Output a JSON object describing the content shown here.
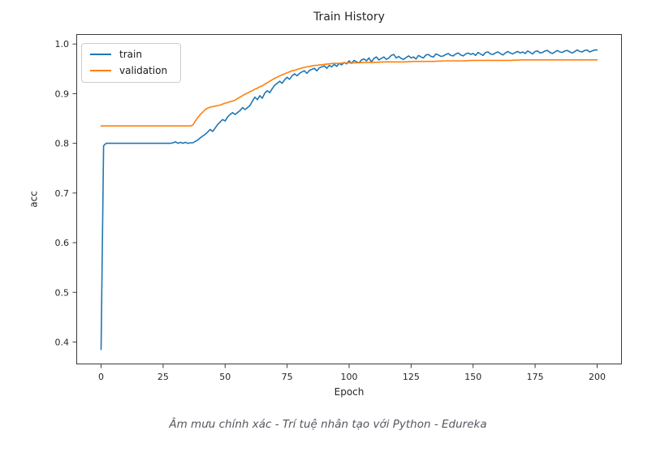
{
  "page": {
    "background": "#ffffff"
  },
  "caption": {
    "text": "Âm mưu chính xác - Trí tuệ nhân tạo với Python - Edureka"
  },
  "chart_data": {
    "type": "line",
    "title": "Train History",
    "xlabel": "Epoch",
    "ylabel": "acc",
    "xlim": [
      -10,
      210
    ],
    "ylim": [
      0.355,
      1.02
    ],
    "grid": false,
    "legend_position": "upper-left",
    "axis_color": "#3a3a3a",
    "x_ticks": [
      {
        "value": 0,
        "label": "0"
      },
      {
        "value": 25,
        "label": "25"
      },
      {
        "value": 50,
        "label": "50"
      },
      {
        "value": 75,
        "label": "75"
      },
      {
        "value": 100,
        "label": "100"
      },
      {
        "value": 125,
        "label": "125"
      },
      {
        "value": 150,
        "label": "150"
      },
      {
        "value": 175,
        "label": "175"
      },
      {
        "value": 200,
        "label": "200"
      }
    ],
    "y_ticks": [
      {
        "value": 0.4,
        "label": "0.4"
      },
      {
        "value": 0.5,
        "label": "0.5"
      },
      {
        "value": 0.6,
        "label": "0.6"
      },
      {
        "value": 0.7,
        "label": "0.7"
      },
      {
        "value": 0.8,
        "label": "0.8"
      },
      {
        "value": 0.9,
        "label": "0.9"
      },
      {
        "value": 1.0,
        "label": "1.0"
      }
    ],
    "series": [
      {
        "name": "train",
        "color": "#1f77b4",
        "points": [
          [
            0,
            0.385
          ],
          [
            1,
            0.795
          ],
          [
            2,
            0.8
          ],
          [
            4,
            0.8
          ],
          [
            6,
            0.8
          ],
          [
            8,
            0.8
          ],
          [
            10,
            0.8
          ],
          [
            12,
            0.8
          ],
          [
            14,
            0.8
          ],
          [
            16,
            0.8
          ],
          [
            18,
            0.8
          ],
          [
            20,
            0.8
          ],
          [
            22,
            0.8
          ],
          [
            24,
            0.8
          ],
          [
            26,
            0.8
          ],
          [
            28,
            0.8
          ],
          [
            29,
            0.801
          ],
          [
            30,
            0.803
          ],
          [
            31,
            0.8
          ],
          [
            32,
            0.802
          ],
          [
            33,
            0.8
          ],
          [
            34,
            0.802
          ],
          [
            35,
            0.8
          ],
          [
            36,
            0.801
          ],
          [
            37,
            0.801
          ],
          [
            38,
            0.804
          ],
          [
            39,
            0.807
          ],
          [
            40,
            0.811
          ],
          [
            41,
            0.815
          ],
          [
            42,
            0.818
          ],
          [
            43,
            0.823
          ],
          [
            44,
            0.828
          ],
          [
            45,
            0.824
          ],
          [
            46,
            0.831
          ],
          [
            47,
            0.838
          ],
          [
            48,
            0.843
          ],
          [
            49,
            0.848
          ],
          [
            50,
            0.845
          ],
          [
            51,
            0.853
          ],
          [
            52,
            0.858
          ],
          [
            53,
            0.862
          ],
          [
            54,
            0.858
          ],
          [
            55,
            0.862
          ],
          [
            56,
            0.866
          ],
          [
            57,
            0.872
          ],
          [
            58,
            0.868
          ],
          [
            59,
            0.872
          ],
          [
            60,
            0.876
          ],
          [
            61,
            0.885
          ],
          [
            62,
            0.893
          ],
          [
            63,
            0.888
          ],
          [
            64,
            0.896
          ],
          [
            65,
            0.891
          ],
          [
            66,
            0.901
          ],
          [
            67,
            0.906
          ],
          [
            68,
            0.902
          ],
          [
            69,
            0.91
          ],
          [
            70,
            0.917
          ],
          [
            71,
            0.921
          ],
          [
            72,
            0.925
          ],
          [
            73,
            0.921
          ],
          [
            74,
            0.928
          ],
          [
            75,
            0.933
          ],
          [
            76,
            0.929
          ],
          [
            77,
            0.936
          ],
          [
            78,
            0.94
          ],
          [
            79,
            0.936
          ],
          [
            80,
            0.941
          ],
          [
            81,
            0.944
          ],
          [
            82,
            0.946
          ],
          [
            83,
            0.941
          ],
          [
            84,
            0.947
          ],
          [
            85,
            0.949
          ],
          [
            86,
            0.951
          ],
          [
            87,
            0.946
          ],
          [
            88,
            0.952
          ],
          [
            89,
            0.954
          ],
          [
            90,
            0.956
          ],
          [
            91,
            0.951
          ],
          [
            92,
            0.957
          ],
          [
            93,
            0.954
          ],
          [
            94,
            0.959
          ],
          [
            95,
            0.955
          ],
          [
            96,
            0.961
          ],
          [
            97,
            0.958
          ],
          [
            98,
            0.963
          ],
          [
            99,
            0.96
          ],
          [
            100,
            0.966
          ],
          [
            101,
            0.961
          ],
          [
            102,
            0.967
          ],
          [
            103,
            0.964
          ],
          [
            104,
            0.962
          ],
          [
            105,
            0.968
          ],
          [
            106,
            0.97
          ],
          [
            107,
            0.966
          ],
          [
            108,
            0.972
          ],
          [
            109,
            0.964
          ],
          [
            110,
            0.971
          ],
          [
            111,
            0.974
          ],
          [
            112,
            0.968
          ],
          [
            113,
            0.971
          ],
          [
            114,
            0.974
          ],
          [
            115,
            0.969
          ],
          [
            116,
            0.972
          ],
          [
            117,
            0.977
          ],
          [
            118,
            0.979
          ],
          [
            119,
            0.972
          ],
          [
            120,
            0.975
          ],
          [
            121,
            0.971
          ],
          [
            122,
            0.969
          ],
          [
            123,
            0.973
          ],
          [
            124,
            0.976
          ],
          [
            125,
            0.972
          ],
          [
            126,
            0.974
          ],
          [
            127,
            0.97
          ],
          [
            128,
            0.977
          ],
          [
            129,
            0.974
          ],
          [
            130,
            0.972
          ],
          [
            131,
            0.978
          ],
          [
            132,
            0.979
          ],
          [
            133,
            0.975
          ],
          [
            134,
            0.974
          ],
          [
            135,
            0.98
          ],
          [
            136,
            0.978
          ],
          [
            137,
            0.975
          ],
          [
            138,
            0.976
          ],
          [
            139,
            0.979
          ],
          [
            140,
            0.981
          ],
          [
            141,
            0.977
          ],
          [
            142,
            0.976
          ],
          [
            143,
            0.98
          ],
          [
            144,
            0.982
          ],
          [
            145,
            0.978
          ],
          [
            146,
            0.976
          ],
          [
            147,
            0.98
          ],
          [
            148,
            0.982
          ],
          [
            149,
            0.979
          ],
          [
            150,
            0.981
          ],
          [
            151,
            0.977
          ],
          [
            152,
            0.983
          ],
          [
            153,
            0.98
          ],
          [
            154,
            0.977
          ],
          [
            155,
            0.983
          ],
          [
            156,
            0.984
          ],
          [
            157,
            0.98
          ],
          [
            158,
            0.979
          ],
          [
            159,
            0.982
          ],
          [
            160,
            0.984
          ],
          [
            161,
            0.981
          ],
          [
            162,
            0.978
          ],
          [
            163,
            0.982
          ],
          [
            164,
            0.985
          ],
          [
            165,
            0.982
          ],
          [
            166,
            0.98
          ],
          [
            167,
            0.983
          ],
          [
            168,
            0.985
          ],
          [
            169,
            0.982
          ],
          [
            170,
            0.984
          ],
          [
            171,
            0.981
          ],
          [
            172,
            0.986
          ],
          [
            173,
            0.983
          ],
          [
            174,
            0.98
          ],
          [
            175,
            0.985
          ],
          [
            176,
            0.986
          ],
          [
            177,
            0.982
          ],
          [
            178,
            0.983
          ],
          [
            179,
            0.986
          ],
          [
            180,
            0.987
          ],
          [
            181,
            0.983
          ],
          [
            182,
            0.981
          ],
          [
            183,
            0.984
          ],
          [
            184,
            0.987
          ],
          [
            185,
            0.984
          ],
          [
            186,
            0.983
          ],
          [
            187,
            0.986
          ],
          [
            188,
            0.987
          ],
          [
            189,
            0.984
          ],
          [
            190,
            0.982
          ],
          [
            191,
            0.985
          ],
          [
            192,
            0.988
          ],
          [
            193,
            0.985
          ],
          [
            194,
            0.984
          ],
          [
            195,
            0.987
          ],
          [
            196,
            0.988
          ],
          [
            197,
            0.984
          ],
          [
            198,
            0.986
          ],
          [
            199,
            0.988
          ],
          [
            200,
            0.988
          ]
        ]
      },
      {
        "name": "validation",
        "color": "#ff7f0e",
        "points": [
          [
            0,
            0.835
          ],
          [
            5,
            0.835
          ],
          [
            10,
            0.835
          ],
          [
            15,
            0.835
          ],
          [
            20,
            0.835
          ],
          [
            25,
            0.835
          ],
          [
            30,
            0.835
          ],
          [
            33,
            0.835
          ],
          [
            35,
            0.835
          ],
          [
            36,
            0.835
          ],
          [
            37,
            0.837
          ],
          [
            38,
            0.845
          ],
          [
            39,
            0.852
          ],
          [
            40,
            0.858
          ],
          [
            41,
            0.863
          ],
          [
            42,
            0.868
          ],
          [
            43,
            0.871
          ],
          [
            44,
            0.873
          ],
          [
            45,
            0.874
          ],
          [
            46,
            0.875
          ],
          [
            47,
            0.876
          ],
          [
            48,
            0.877
          ],
          [
            49,
            0.879
          ],
          [
            50,
            0.881
          ],
          [
            51,
            0.882
          ],
          [
            52,
            0.884
          ],
          [
            53,
            0.885
          ],
          [
            54,
            0.887
          ],
          [
            55,
            0.89
          ],
          [
            56,
            0.893
          ],
          [
            57,
            0.896
          ],
          [
            58,
            0.899
          ],
          [
            59,
            0.901
          ],
          [
            60,
            0.904
          ],
          [
            61,
            0.906
          ],
          [
            62,
            0.909
          ],
          [
            63,
            0.911
          ],
          [
            64,
            0.914
          ],
          [
            65,
            0.916
          ],
          [
            66,
            0.919
          ],
          [
            67,
            0.922
          ],
          [
            68,
            0.925
          ],
          [
            69,
            0.928
          ],
          [
            70,
            0.931
          ],
          [
            71,
            0.933
          ],
          [
            72,
            0.936
          ],
          [
            73,
            0.938
          ],
          [
            74,
            0.94
          ],
          [
            75,
            0.942
          ],
          [
            76,
            0.944
          ],
          [
            77,
            0.946
          ],
          [
            78,
            0.947
          ],
          [
            79,
            0.949
          ],
          [
            80,
            0.95
          ],
          [
            81,
            0.952
          ],
          [
            82,
            0.953
          ],
          [
            83,
            0.954
          ],
          [
            84,
            0.955
          ],
          [
            85,
            0.956
          ],
          [
            86,
            0.957
          ],
          [
            87,
            0.957
          ],
          [
            88,
            0.958
          ],
          [
            89,
            0.958
          ],
          [
            90,
            0.959
          ],
          [
            92,
            0.96
          ],
          [
            94,
            0.961
          ],
          [
            96,
            0.961
          ],
          [
            98,
            0.962
          ],
          [
            100,
            0.962
          ],
          [
            103,
            0.962
          ],
          [
            106,
            0.963
          ],
          [
            110,
            0.963
          ],
          [
            114,
            0.964
          ],
          [
            118,
            0.964
          ],
          [
            122,
            0.964
          ],
          [
            126,
            0.965
          ],
          [
            130,
            0.965
          ],
          [
            134,
            0.965
          ],
          [
            138,
            0.966
          ],
          [
            142,
            0.966
          ],
          [
            146,
            0.966
          ],
          [
            150,
            0.967
          ],
          [
            155,
            0.967
          ],
          [
            160,
            0.967
          ],
          [
            165,
            0.967
          ],
          [
            170,
            0.968
          ],
          [
            175,
            0.968
          ],
          [
            180,
            0.968
          ],
          [
            185,
            0.968
          ],
          [
            190,
            0.968
          ],
          [
            195,
            0.968
          ],
          [
            200,
            0.968
          ]
        ]
      }
    ]
  }
}
